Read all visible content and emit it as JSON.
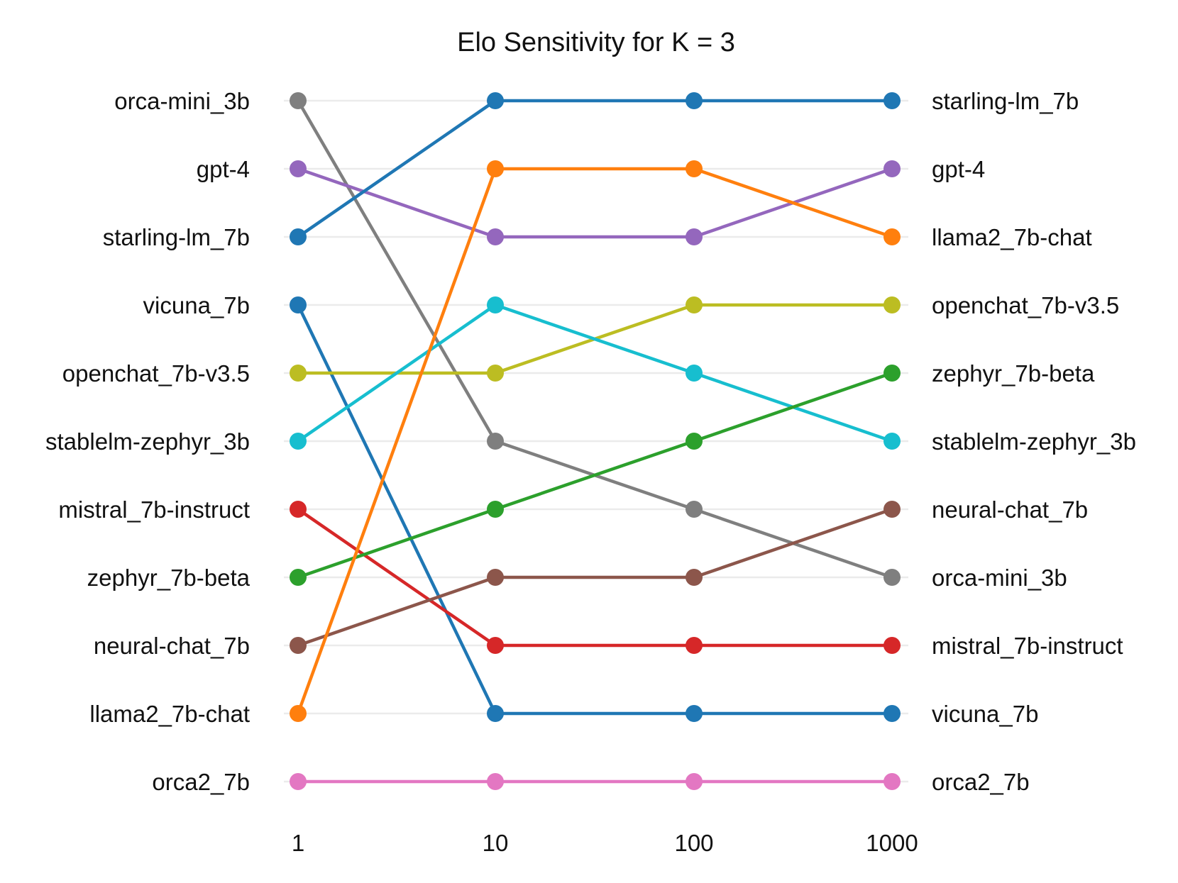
{
  "chart_data": {
    "type": "line",
    "title": "Elo Sensitivity for K = 3",
    "xlabel": "",
    "ylabel": "",
    "x": [
      "1",
      "10",
      "100",
      "1000"
    ],
    "rank_count": 11,
    "left_labels": [
      "orca-mini_3b",
      "gpt-4",
      "starling-lm_7b",
      "vicuna_7b",
      "openchat_7b-v3.5",
      "stablelm-zephyr_3b",
      "mistral_7b-instruct",
      "zephyr_7b-beta",
      "neural-chat_7b",
      "llama2_7b-chat",
      "orca2_7b"
    ],
    "right_labels": [
      "starling-lm_7b",
      "gpt-4",
      "llama2_7b-chat",
      "openchat_7b-v3.5",
      "zephyr_7b-beta",
      "stablelm-zephyr_3b",
      "neural-chat_7b",
      "orca-mini_3b",
      "mistral_7b-instruct",
      "vicuna_7b",
      "orca2_7b"
    ],
    "series": [
      {
        "name": "orca-mini_3b",
        "color": "#7f7f7f",
        "ranks": [
          1,
          6,
          7,
          8
        ]
      },
      {
        "name": "gpt-4",
        "color": "#9467bd",
        "ranks": [
          2,
          3,
          3,
          2
        ]
      },
      {
        "name": "starling-lm_7b",
        "color": "#1f77b4",
        "ranks": [
          3,
          1,
          1,
          1
        ]
      },
      {
        "name": "vicuna_7b",
        "color": "#1f77b4",
        "ranks": [
          4,
          10,
          10,
          10
        ]
      },
      {
        "name": "openchat_7b-v3.5",
        "color": "#bcbd22",
        "ranks": [
          5,
          5,
          4,
          4
        ]
      },
      {
        "name": "stablelm-zephyr_3b",
        "color": "#17becf",
        "ranks": [
          6,
          4,
          5,
          6
        ]
      },
      {
        "name": "mistral_7b-instruct",
        "color": "#d62728",
        "ranks": [
          7,
          9,
          9,
          9
        ]
      },
      {
        "name": "zephyr_7b-beta",
        "color": "#2ca02c",
        "ranks": [
          8,
          7,
          6,
          5
        ]
      },
      {
        "name": "neural-chat_7b",
        "color": "#8c564b",
        "ranks": [
          9,
          8,
          8,
          7
        ]
      },
      {
        "name": "llama2_7b-chat",
        "color": "#ff7f0e",
        "ranks": [
          10,
          2,
          2,
          3
        ]
      },
      {
        "name": "orca2_7b",
        "color": "#e377c2",
        "ranks": [
          11,
          11,
          11,
          11
        ]
      }
    ]
  }
}
